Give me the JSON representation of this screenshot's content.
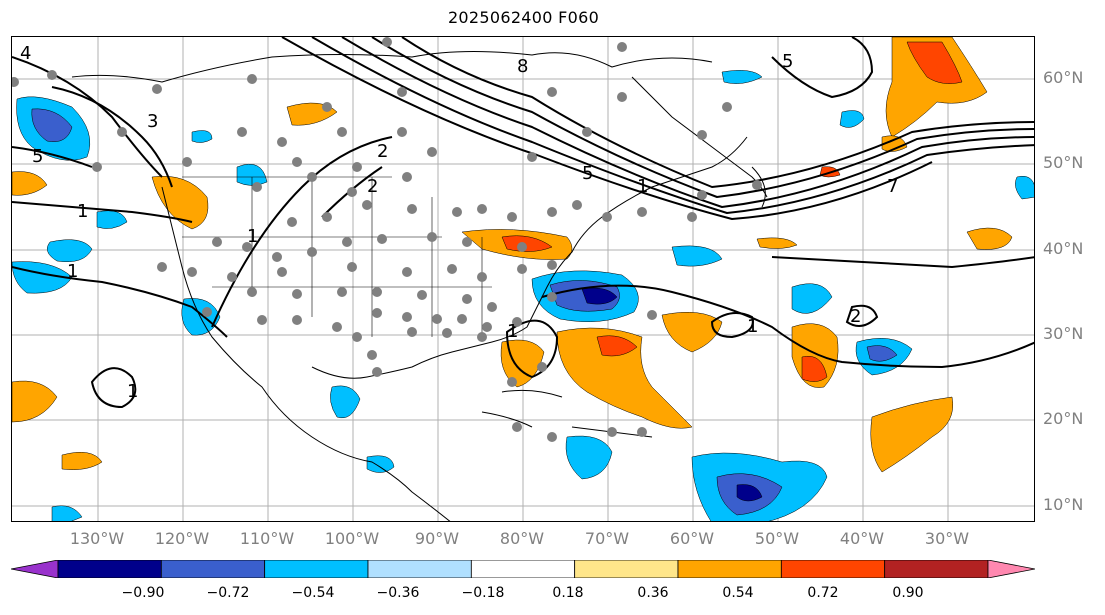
{
  "title": "2025062400 F060",
  "map": {
    "lat_labels": [
      "60°N",
      "50°N",
      "40°N",
      "30°N",
      "20°N",
      "10°N"
    ],
    "lon_labels": [
      "130°W",
      "120°W",
      "110°W",
      "100°W",
      "90°W",
      "80°W",
      "70°W",
      "60°W",
      "50°W",
      "40°W",
      "30°W"
    ],
    "contour_labels": [
      "4",
      "3",
      "5",
      "1",
      "1",
      "2",
      "2",
      "1",
      "1",
      "1",
      "1",
      "1",
      "2",
      "8",
      "7",
      "5",
      "5"
    ]
  },
  "colorbar": {
    "ticks": [
      "−0.90",
      "−0.72",
      "−0.54",
      "−0.36",
      "−0.18",
      "0.18",
      "0.36",
      "0.54",
      "0.72",
      "0.90"
    ],
    "colors": [
      "#9932cc",
      "#00008b",
      "#3a5fcd",
      "#00bfff",
      "#b0e0ff",
      "#ffffff",
      "#ffe68a",
      "#ffa500",
      "#ff4500",
      "#b22222",
      "#ff88b0"
    ]
  }
}
